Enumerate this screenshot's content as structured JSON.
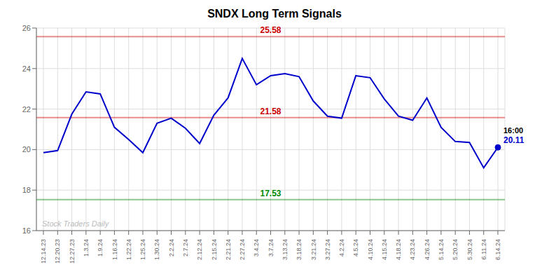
{
  "chart_data": {
    "type": "line",
    "title": "SNDX Long Term Signals",
    "categories": [
      "12.14.23",
      "12.20.23",
      "12.27.23",
      "1.3.24",
      "1.9.24",
      "1.16.24",
      "1.22.24",
      "1.25.24",
      "1.30.24",
      "2.2.24",
      "2.7.24",
      "2.12.24",
      "2.15.24",
      "2.21.24",
      "2.27.24",
      "3.4.24",
      "3.7.24",
      "3.13.24",
      "3.18.24",
      "3.21.24",
      "3.27.24",
      "4.2.24",
      "4.5.24",
      "4.10.24",
      "4.15.24",
      "4.18.24",
      "4.23.24",
      "4.26.24",
      "5.14.24",
      "5.20.24",
      "5.30.24",
      "6.11.24",
      "6.14.24"
    ],
    "values": [
      19.85,
      19.95,
      21.75,
      22.85,
      22.75,
      21.1,
      20.5,
      19.85,
      21.3,
      21.55,
      21.05,
      20.3,
      21.7,
      22.55,
      24.5,
      23.2,
      23.65,
      23.75,
      23.6,
      22.4,
      21.65,
      21.55,
      23.65,
      23.55,
      22.5,
      21.65,
      21.45,
      22.55,
      21.1,
      20.4,
      20.35,
      19.1,
      20.11
    ],
    "color": "#0000cc",
    "ylim": [
      16,
      26
    ],
    "yticks": [
      16,
      18,
      20,
      22,
      24,
      26
    ],
    "grid": true,
    "hlines": [
      {
        "value": 25.58,
        "label": "25.58",
        "color": "#cc0000"
      },
      {
        "value": 21.58,
        "label": "21.58",
        "color": "#cc0000"
      },
      {
        "value": 17.53,
        "label": "17.53",
        "color": "#008800"
      }
    ],
    "annotations": [
      {
        "text": "Stock Traders Daily",
        "color": "#bbbbbb",
        "anchor": "bottom left"
      },
      {
        "text": "16:00",
        "color": "#000000",
        "anchor": "last"
      },
      {
        "text": "20.11",
        "color": "#0000cc",
        "anchor": "last"
      }
    ]
  }
}
